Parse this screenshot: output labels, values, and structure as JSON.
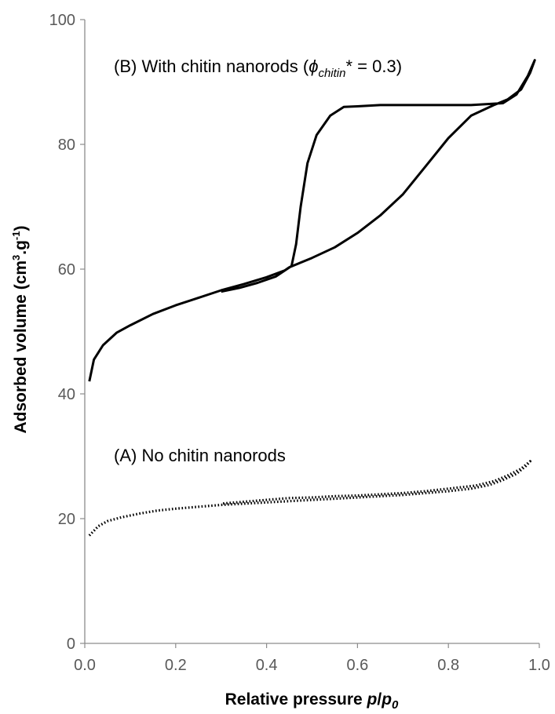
{
  "chart_data": {
    "type": "line",
    "title": "",
    "xlabel": "Relative pressure",
    "xlabel_symbol": "p",
    "xlabel_symbol_sub": "0",
    "ylabel_main": "Adsorbed volume (cm",
    "ylabel_sup1": "3",
    "ylabel_mid": ".g",
    "ylabel_sup2": "-1",
    "ylabel_end": ")",
    "xlim": [
      0,
      1
    ],
    "ylim": [
      0,
      100
    ],
    "x_ticks": [
      "0.0",
      "0.2",
      "0.4",
      "0.6",
      "0.8",
      "1.0"
    ],
    "y_ticks": [
      "0",
      "20",
      "40",
      "60",
      "80",
      "100"
    ],
    "grid": false,
    "legend": "none",
    "annotations": {
      "b_prefix": "(B) With chitin nanorods (",
      "b_phi": "ϕ",
      "b_sub": "chitin",
      "b_suffix": "* = 0.3)",
      "a_text": "(A) No chitin nanorods"
    },
    "series": [
      {
        "style": "solid",
        "color": "#000000",
        "points": [
          [
            0.01,
            42.0
          ],
          [
            0.02,
            45.5
          ],
          [
            0.04,
            47.8
          ],
          [
            0.07,
            49.8
          ],
          [
            0.1,
            51.0
          ],
          [
            0.15,
            52.8
          ],
          [
            0.2,
            54.2
          ],
          [
            0.25,
            55.4
          ],
          [
            0.3,
            56.6
          ],
          [
            0.35,
            57.6
          ],
          [
            0.4,
            58.7
          ],
          [
            0.44,
            59.8
          ],
          [
            0.45,
            60.3
          ],
          [
            0.5,
            61.8
          ],
          [
            0.55,
            63.5
          ],
          [
            0.6,
            65.8
          ],
          [
            0.65,
            68.6
          ],
          [
            0.7,
            72.0
          ],
          [
            0.75,
            76.5
          ],
          [
            0.8,
            81.0
          ],
          [
            0.85,
            84.6
          ],
          [
            0.9,
            86.3
          ],
          [
            0.93,
            87.2
          ],
          [
            0.96,
            88.8
          ],
          [
            0.98,
            91.5
          ],
          [
            0.99,
            93.5
          ],
          [
            0.975,
            91.0
          ],
          [
            0.95,
            88.0
          ],
          [
            0.92,
            86.6
          ],
          [
            0.85,
            86.3
          ],
          [
            0.75,
            86.3
          ],
          [
            0.65,
            86.3
          ],
          [
            0.6,
            86.1
          ],
          [
            0.57,
            86.0
          ],
          [
            0.54,
            84.6
          ],
          [
            0.51,
            81.5
          ],
          [
            0.49,
            77.0
          ],
          [
            0.475,
            70.0
          ],
          [
            0.465,
            64.0
          ],
          [
            0.455,
            60.5
          ],
          [
            0.42,
            58.8
          ],
          [
            0.38,
            57.8
          ],
          [
            0.34,
            57.0
          ],
          [
            0.3,
            56.4
          ]
        ]
      },
      {
        "style": "dotted",
        "color": "#000000",
        "points": [
          [
            0.01,
            17.3
          ],
          [
            0.03,
            18.8
          ],
          [
            0.05,
            19.6
          ],
          [
            0.08,
            20.2
          ],
          [
            0.12,
            20.8
          ],
          [
            0.16,
            21.3
          ],
          [
            0.2,
            21.6
          ],
          [
            0.25,
            21.9
          ],
          [
            0.3,
            22.2
          ],
          [
            0.35,
            22.4
          ],
          [
            0.4,
            22.6
          ],
          [
            0.45,
            22.8
          ],
          [
            0.5,
            23.0
          ],
          [
            0.55,
            23.2
          ],
          [
            0.6,
            23.4
          ],
          [
            0.65,
            23.6
          ],
          [
            0.7,
            23.8
          ],
          [
            0.75,
            24.1
          ],
          [
            0.8,
            24.4
          ],
          [
            0.85,
            24.8
          ],
          [
            0.89,
            25.4
          ],
          [
            0.92,
            26.2
          ],
          [
            0.95,
            27.2
          ],
          [
            0.97,
            28.4
          ],
          [
            0.98,
            29.2
          ],
          [
            0.96,
            28.0
          ],
          [
            0.93,
            26.9
          ],
          [
            0.9,
            26.0
          ],
          [
            0.86,
            25.3
          ],
          [
            0.8,
            24.8
          ],
          [
            0.75,
            24.4
          ],
          [
            0.7,
            24.1
          ],
          [
            0.65,
            23.9
          ],
          [
            0.6,
            23.7
          ],
          [
            0.55,
            23.6
          ],
          [
            0.5,
            23.4
          ],
          [
            0.45,
            23.3
          ],
          [
            0.4,
            23.0
          ],
          [
            0.35,
            22.7
          ],
          [
            0.3,
            22.4
          ]
        ]
      }
    ]
  }
}
